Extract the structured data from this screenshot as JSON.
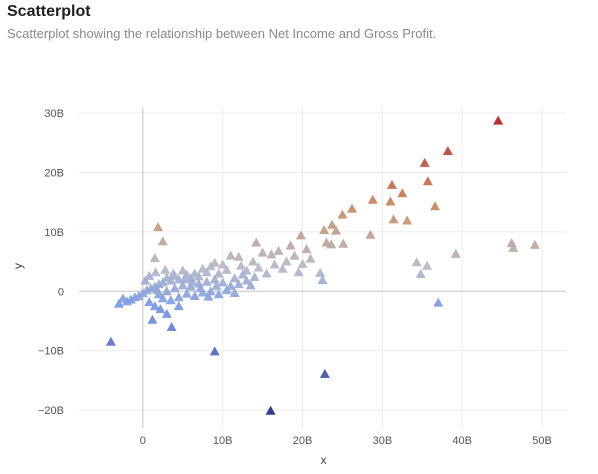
{
  "header": {
    "title": "Scatterplot",
    "subtitle": "Scatterplot showing the relationship between Net Income and Gross Profit."
  },
  "chart_data": {
    "type": "scatter",
    "marker": "triangle",
    "title": "Scatterplot",
    "subtitle": "Scatterplot showing the relationship between Net Income and Gross Profit.",
    "xlabel": "x",
    "ylabel": "y",
    "xlim": [
      -8,
      53
    ],
    "ylim": [
      -23,
      31
    ],
    "x_unit": "B",
    "y_unit": "B",
    "x_ticks": [
      0,
      10,
      20,
      30,
      40,
      50
    ],
    "y_ticks": [
      -20,
      -10,
      0,
      10,
      20,
      30
    ],
    "x_tick_labels": [
      "0",
      "10B",
      "20B",
      "30B",
      "40B",
      "50B"
    ],
    "y_tick_labels": [
      "−20B",
      "−10B",
      "0",
      "10B",
      "20B",
      "30B"
    ],
    "grid": true,
    "legend": "none",
    "color_scale": {
      "encodes": "y",
      "stops": [
        "#1a2a8c",
        "#7b9ae6",
        "#b4b8c8",
        "#c98a5e",
        "#b01e1e"
      ]
    },
    "points": [
      {
        "x": 44.5,
        "y": 28.7
      },
      {
        "x": 38.2,
        "y": 23.6
      },
      {
        "x": 35.3,
        "y": 21.6
      },
      {
        "x": 35.7,
        "y": 18.5
      },
      {
        "x": 31.2,
        "y": 17.9
      },
      {
        "x": 32.5,
        "y": 16.5
      },
      {
        "x": 28.8,
        "y": 15.4
      },
      {
        "x": 31.0,
        "y": 15.1
      },
      {
        "x": 36.6,
        "y": 14.3
      },
      {
        "x": 26.2,
        "y": 13.9
      },
      {
        "x": 25.0,
        "y": 12.9
      },
      {
        "x": 31.4,
        "y": 12.1
      },
      {
        "x": 33.1,
        "y": 11.9
      },
      {
        "x": 23.7,
        "y": 11.2
      },
      {
        "x": 22.7,
        "y": 10.3
      },
      {
        "x": 24.2,
        "y": 10.2
      },
      {
        "x": 1.9,
        "y": 10.8
      },
      {
        "x": 19.8,
        "y": 9.4
      },
      {
        "x": 28.5,
        "y": 9.5
      },
      {
        "x": 2.5,
        "y": 8.4
      },
      {
        "x": 23.0,
        "y": 8.2
      },
      {
        "x": 23.6,
        "y": 7.9
      },
      {
        "x": 25.1,
        "y": 8.0
      },
      {
        "x": 46.2,
        "y": 8.1
      },
      {
        "x": 46.4,
        "y": 7.3
      },
      {
        "x": 49.1,
        "y": 7.8
      },
      {
        "x": 14.2,
        "y": 8.2
      },
      {
        "x": 18.5,
        "y": 7.7
      },
      {
        "x": 20.5,
        "y": 7.1
      },
      {
        "x": 39.2,
        "y": 6.3
      },
      {
        "x": 16.1,
        "y": 6.2
      },
      {
        "x": 1.5,
        "y": 5.6
      },
      {
        "x": 13.8,
        "y": 5.0
      },
      {
        "x": 34.3,
        "y": 4.9
      },
      {
        "x": 35.6,
        "y": 4.3
      },
      {
        "x": 34.8,
        "y": 2.9
      },
      {
        "x": 22.2,
        "y": 3.1
      },
      {
        "x": 22.5,
        "y": 1.9
      },
      {
        "x": 37.0,
        "y": -1.9
      },
      {
        "x": 11.0,
        "y": 6.0
      },
      {
        "x": 12.0,
        "y": 5.8
      },
      {
        "x": 15.0,
        "y": 6.5
      },
      {
        "x": 17.0,
        "y": 6.8
      },
      {
        "x": 19.0,
        "y": 6.0
      },
      {
        "x": 21.0,
        "y": 5.5
      },
      {
        "x": 18.0,
        "y": 5.0
      },
      {
        "x": 16.5,
        "y": 4.5
      },
      {
        "x": 14.5,
        "y": 4.0
      },
      {
        "x": 13.0,
        "y": 3.5
      },
      {
        "x": 12.5,
        "y": 2.8
      },
      {
        "x": 11.5,
        "y": 2.2
      },
      {
        "x": 15.5,
        "y": 3.0
      },
      {
        "x": 17.5,
        "y": 3.8
      },
      {
        "x": 19.5,
        "y": 3.2
      },
      {
        "x": 20.0,
        "y": 4.6
      },
      {
        "x": 9.0,
        "y": 4.8
      },
      {
        "x": 8.5,
        "y": 4.2
      },
      {
        "x": 10.0,
        "y": 4.5
      },
      {
        "x": 10.5,
        "y": 3.6
      },
      {
        "x": 9.5,
        "y": 3.0
      },
      {
        "x": 8.0,
        "y": 3.2
      },
      {
        "x": 7.5,
        "y": 3.8
      },
      {
        "x": 7.0,
        "y": 2.5
      },
      {
        "x": 6.5,
        "y": 3.0
      },
      {
        "x": 6.0,
        "y": 2.2
      },
      {
        "x": 5.5,
        "y": 2.8
      },
      {
        "x": 5.0,
        "y": 3.5
      },
      {
        "x": 4.5,
        "y": 2.0
      },
      {
        "x": 4.0,
        "y": 2.6
      },
      {
        "x": 3.5,
        "y": 1.8
      },
      {
        "x": 3.0,
        "y": 2.3
      },
      {
        "x": 2.5,
        "y": 1.5
      },
      {
        "x": 2.0,
        "y": 1.2
      },
      {
        "x": 1.5,
        "y": 0.8
      },
      {
        "x": 1.0,
        "y": 0.5
      },
      {
        "x": 0.5,
        "y": 0.2
      },
      {
        "x": 0.0,
        "y": -0.3
      },
      {
        "x": -0.5,
        "y": -0.8
      },
      {
        "x": -1.0,
        "y": -1.0
      },
      {
        "x": -1.5,
        "y": -1.4
      },
      {
        "x": -2.0,
        "y": -1.7
      },
      {
        "x": -2.5,
        "y": -1.2
      },
      {
        "x": -3.0,
        "y": -2.1
      },
      {
        "x": 0.8,
        "y": -1.8
      },
      {
        "x": 1.5,
        "y": -2.5
      },
      {
        "x": 2.2,
        "y": -3.0
      },
      {
        "x": 1.2,
        "y": -4.8
      },
      {
        "x": 3.0,
        "y": -3.8
      },
      {
        "x": 3.6,
        "y": -6.0
      },
      {
        "x": 4.5,
        "y": -2.5
      },
      {
        "x": 2.0,
        "y": -0.5
      },
      {
        "x": 3.0,
        "y": 0.0
      },
      {
        "x": 4.0,
        "y": 0.5
      },
      {
        "x": 5.0,
        "y": 1.0
      },
      {
        "x": 6.0,
        "y": 0.8
      },
      {
        "x": 7.0,
        "y": 1.3
      },
      {
        "x": 8.0,
        "y": 1.6
      },
      {
        "x": 9.0,
        "y": 2.0
      },
      {
        "x": 10.0,
        "y": 1.5
      },
      {
        "x": 11.0,
        "y": 0.9
      },
      {
        "x": 12.0,
        "y": 1.2
      },
      {
        "x": 13.0,
        "y": 1.8
      },
      {
        "x": 14.0,
        "y": 2.4
      },
      {
        "x": 11.5,
        "y": -0.3
      },
      {
        "x": 10.5,
        "y": 0.2
      },
      {
        "x": 9.5,
        "y": -0.5
      },
      {
        "x": 8.5,
        "y": 0.0
      },
      {
        "x": 7.5,
        "y": -0.2
      },
      {
        "x": 6.5,
        "y": -0.8
      },
      {
        "x": 5.5,
        "y": -0.4
      },
      {
        "x": 4.5,
        "y": -1.0
      },
      {
        "x": 3.5,
        "y": -1.5
      },
      {
        "x": 2.5,
        "y": -1.2
      },
      {
        "x": 1.8,
        "y": 0.2
      },
      {
        "x": 0.3,
        "y": 1.8
      },
      {
        "x": 0.8,
        "y": 2.6
      },
      {
        "x": 1.6,
        "y": 3.2
      },
      {
        "x": 2.8,
        "y": 3.6
      },
      {
        "x": 3.8,
        "y": 3.0
      },
      {
        "x": 5.2,
        "y": 2.0
      },
      {
        "x": 6.2,
        "y": 1.6
      },
      {
        "x": 7.2,
        "y": 0.5
      },
      {
        "x": 8.2,
        "y": -0.9
      },
      {
        "x": 9.2,
        "y": 0.9
      },
      {
        "x": 12.3,
        "y": 4.3
      },
      {
        "x": 13.5,
        "y": 1.0
      },
      {
        "x": -4.0,
        "y": -8.5
      },
      {
        "x": 9.0,
        "y": -10.1
      },
      {
        "x": 22.8,
        "y": -13.9
      },
      {
        "x": 16.0,
        "y": -20.1
      }
    ]
  }
}
